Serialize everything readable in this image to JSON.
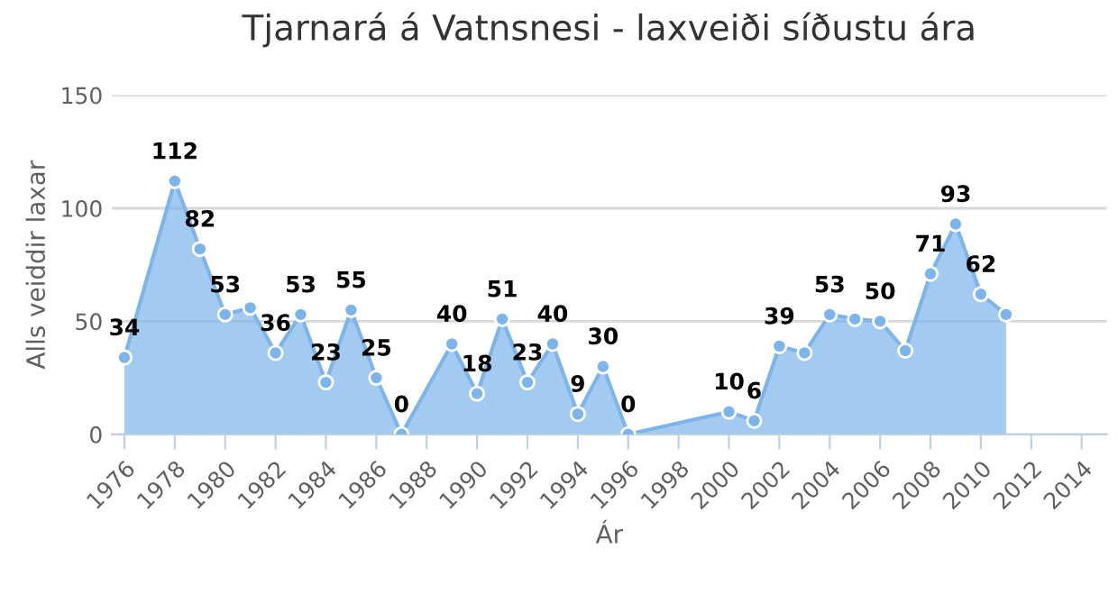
{
  "chart_data": {
    "type": "area",
    "title": "Tjarnará á Vatnsnesi - laxveiði síðustu ára",
    "xlabel": "Ár",
    "ylabel": "Alls veiddir laxar",
    "x": [
      1976,
      1978,
      1979,
      1980,
      1981,
      1982,
      1983,
      1984,
      1985,
      1986,
      1987,
      1989,
      1990,
      1991,
      1992,
      1993,
      1994,
      1995,
      1996,
      2000,
      2001,
      2002,
      2003,
      2004,
      2005,
      2006,
      2007,
      2008,
      2009,
      2010,
      2011
    ],
    "series": [
      {
        "color": "#7cb5ec",
        "values": [
          34,
          112,
          82,
          53,
          56,
          36,
          53,
          23,
          55,
          25,
          0,
          40,
          18,
          51,
          23,
          40,
          9,
          30,
          0,
          10,
          6,
          39,
          36,
          53,
          51,
          50,
          37,
          71,
          93,
          62,
          53
        ],
        "value_labels": [
          "34",
          "112",
          "82",
          "53",
          null,
          "36",
          "53",
          "23",
          "55",
          "25",
          "0",
          "40",
          "18",
          "51",
          "23",
          "40",
          "9",
          "30",
          "0",
          "10",
          "6",
          "39",
          null,
          "53",
          null,
          "50",
          null,
          "71",
          "93",
          "62",
          null
        ]
      }
    ],
    "xlim": [
      1975.5,
      2015
    ],
    "xticks": [
      1976,
      1978,
      1980,
      1982,
      1984,
      1986,
      1988,
      1990,
      1992,
      1994,
      1996,
      1998,
      2000,
      2002,
      2004,
      2006,
      2008,
      2010,
      2012,
      2014
    ],
    "ylim": [
      0,
      150
    ],
    "yticks": [
      0,
      50,
      100,
      150
    ],
    "grid": "y",
    "marker": "circle",
    "legend": false
  }
}
